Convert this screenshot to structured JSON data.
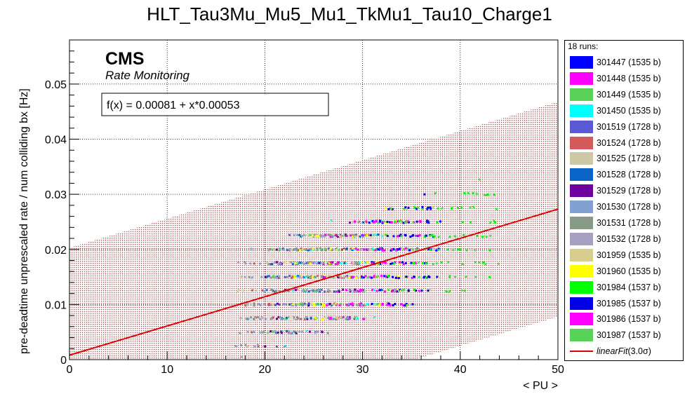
{
  "chart_data": {
    "type": "scatter",
    "title": "HLT_Tau3Mu_Mu5_Mu1_TkMu1_Tau10_Charge1",
    "xlabel": "< PU >",
    "ylabel": "pre-deadtime unprescaled rate / num colliding bx [Hz]",
    "xlim": [
      0,
      50
    ],
    "ylim": [
      0,
      0.058
    ],
    "x_ticks": [
      0,
      10,
      20,
      30,
      40,
      50
    ],
    "x_tick_labels": [
      "0",
      "10",
      "20",
      "30",
      "40",
      "50"
    ],
    "y_ticks": [
      0,
      0.01,
      0.02,
      0.03,
      0.04,
      0.05
    ],
    "y_tick_labels": [
      "0",
      "0.01",
      "0.02",
      "0.03",
      "0.04",
      "0.05"
    ],
    "grid": true,
    "legend_position": "right",
    "cms_label": "CMS",
    "cms_sublabel": "Rate Monitoring",
    "fit_text": "f(x) = 0.00081 + x*0.00053",
    "legend_header": "18 runs:",
    "fit": {
      "name": "linearFit(3.0σ)",
      "label_main": "linearFit",
      "label_arg": "(3.0σ)",
      "intercept": 0.00081,
      "slope": 0.00053,
      "band_sigma_y": 0.0195,
      "color": "#e00000",
      "band_color": "#a05050"
    },
    "series": [
      {
        "name": "301447 (1535 b)",
        "color": "#0000ff",
        "pu_range": [
          30,
          38
        ]
      },
      {
        "name": "301448 (1535 b)",
        "color": "#ff00ff",
        "pu_range": [
          28,
          36
        ]
      },
      {
        "name": "301449 (1535 b)",
        "color": "#5ad25a",
        "pu_range": [
          20,
          44
        ]
      },
      {
        "name": "301450 (1535 b)",
        "color": "#00ffff",
        "pu_range": [
          22,
          32
        ]
      },
      {
        "name": "301519 (1728 b)",
        "color": "#5a5ad7",
        "pu_range": [
          20,
          30
        ]
      },
      {
        "name": "301524 (1728 b)",
        "color": "#d25a5a",
        "pu_range": [
          18,
          30
        ]
      },
      {
        "name": "301525 (1728 b)",
        "color": "#cdc8a5",
        "pu_range": [
          17,
          32
        ]
      },
      {
        "name": "301528 (1728 b)",
        "color": "#0a64c8",
        "pu_range": [
          20,
          32
        ]
      },
      {
        "name": "301529 (1728 b)",
        "color": "#6e00a0",
        "pu_range": [
          20,
          30
        ]
      },
      {
        "name": "301530 (1728 b)",
        "color": "#82a0d2",
        "pu_range": [
          18,
          30
        ]
      },
      {
        "name": "301531 (1728 b)",
        "color": "#869a86",
        "pu_range": [
          17,
          28
        ]
      },
      {
        "name": "301532 (1728 b)",
        "color": "#a7a0c0",
        "pu_range": [
          17,
          28
        ]
      },
      {
        "name": "301959 (1535 b)",
        "color": "#d7cd8c",
        "pu_range": [
          22,
          38
        ]
      },
      {
        "name": "301960 (1535 b)",
        "color": "#ffff00",
        "pu_range": [
          22,
          34
        ]
      },
      {
        "name": "301984 (1537 b)",
        "color": "#00ff00",
        "pu_range": [
          32,
          44
        ]
      },
      {
        "name": "301985 (1537 b)",
        "color": "#0000e6",
        "pu_range": [
          30,
          37
        ]
      },
      {
        "name": "301986 (1537 b)",
        "color": "#ff00ff",
        "pu_range": [
          26,
          34
        ]
      },
      {
        "name": "301987 (1537 b)",
        "color": "#5ad25a",
        "pu_range": [
          20,
          44
        ]
      }
    ]
  }
}
